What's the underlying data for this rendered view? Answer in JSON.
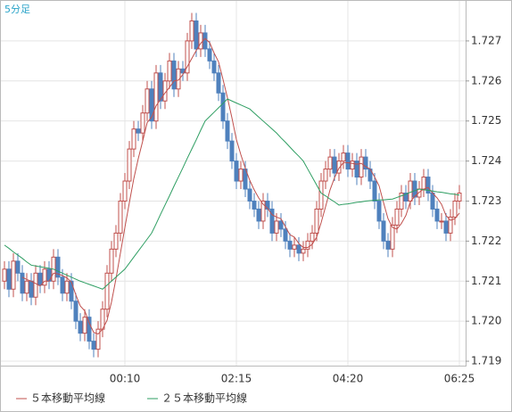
{
  "chart_data": {
    "type": "candlestick",
    "period_label": "5分足",
    "categories": [
      null,
      null,
      null,
      null,
      null,
      null,
      null,
      null,
      null,
      null,
      null,
      null,
      null,
      null,
      null,
      null,
      null,
      null,
      null,
      null,
      null,
      null,
      null,
      null,
      null,
      null,
      null,
      "00:10",
      null,
      null,
      null,
      null,
      null,
      null,
      null,
      null,
      null,
      null,
      null,
      null,
      null,
      null,
      null,
      null,
      null,
      null,
      null,
      null,
      null,
      null,
      null,
      null,
      "02:15",
      null,
      null,
      null,
      null,
      null,
      null,
      null,
      null,
      null,
      null,
      null,
      null,
      null,
      null,
      null,
      null,
      null,
      null,
      null,
      null,
      null,
      null,
      null,
      null,
      "04:20",
      null,
      null,
      null,
      null,
      null,
      null,
      null,
      null,
      null,
      null,
      null,
      null,
      null,
      null,
      null,
      null,
      null,
      null,
      null,
      null,
      null,
      null,
      null,
      null,
      "06:25"
    ],
    "open": [
      1.721,
      1.7213,
      1.7208,
      1.7215,
      1.7212,
      1.7207,
      1.721,
      1.7206,
      1.7212,
      1.7209,
      1.7213,
      1.721,
      1.7216,
      1.7211,
      1.7207,
      1.721,
      1.7205,
      1.72,
      1.7197,
      1.7201,
      1.7195,
      1.7193,
      1.7198,
      1.7203,
      1.7212,
      1.7218,
      1.7222,
      1.723,
      1.7235,
      1.7243,
      1.7248,
      1.7247,
      1.7252,
      1.7258,
      1.725,
      1.7262,
      1.7255,
      1.726,
      1.7265,
      1.7258,
      1.7263,
      1.7262,
      1.727,
      1.7275,
      1.7268,
      1.7272,
      1.7268,
      1.7265,
      1.7262,
      1.7257,
      1.725,
      1.7245,
      1.724,
      1.7235,
      1.7238,
      1.7233,
      1.723,
      1.7228,
      1.7225,
      1.723,
      1.7228,
      1.7222,
      1.7225,
      1.7223,
      1.722,
      1.7218,
      1.7219,
      1.7217,
      1.7218,
      1.722,
      1.7222,
      1.7228,
      1.7235,
      1.7238,
      1.7241,
      1.7237,
      1.724,
      1.7242,
      1.7238,
      1.724,
      1.7236,
      1.7241,
      1.7238,
      1.7235,
      1.723,
      1.7225,
      1.722,
      1.7218,
      1.7224,
      1.7228,
      1.7232,
      1.723,
      1.7235,
      1.7231,
      1.7233,
      1.7236,
      1.7232,
      1.7228,
      1.7225,
      1.7225,
      1.7222,
      1.7226,
      1.723
    ],
    "high": [
      1.7215,
      1.7215,
      1.7217,
      1.7217,
      1.7214,
      1.7212,
      1.7212,
      1.7214,
      1.7214,
      1.7215,
      1.7215,
      1.7218,
      1.7218,
      1.7213,
      1.7212,
      1.7212,
      1.7207,
      1.7202,
      1.7203,
      1.7203,
      1.7197,
      1.72,
      1.7205,
      1.7214,
      1.722,
      1.7224,
      1.7232,
      1.7237,
      1.7245,
      1.725,
      1.725,
      1.7254,
      1.726,
      1.726,
      1.7264,
      1.7264,
      1.7262,
      1.7267,
      1.7267,
      1.7265,
      1.7265,
      1.7272,
      1.7277,
      1.7277,
      1.7274,
      1.7274,
      1.727,
      1.7267,
      1.7264,
      1.7259,
      1.7252,
      1.7247,
      1.7242,
      1.724,
      1.724,
      1.7235,
      1.7232,
      1.723,
      1.7232,
      1.7232,
      1.723,
      1.7227,
      1.7227,
      1.7225,
      1.7222,
      1.7221,
      1.7221,
      1.722,
      1.7222,
      1.7224,
      1.723,
      1.7237,
      1.724,
      1.7243,
      1.7243,
      1.7242,
      1.7244,
      1.7244,
      1.7242,
      1.7242,
      1.7243,
      1.7243,
      1.724,
      1.7237,
      1.7232,
      1.7227,
      1.7222,
      1.7226,
      1.723,
      1.7234,
      1.7234,
      1.7237,
      1.7237,
      1.7235,
      1.7238,
      1.7238,
      1.7234,
      1.723,
      1.7227,
      1.7227,
      1.7228,
      1.7232,
      1.7234
    ],
    "low": [
      1.7208,
      1.7206,
      1.7206,
      1.721,
      1.7205,
      1.7205,
      1.7204,
      1.7204,
      1.7207,
      1.7207,
      1.7208,
      1.7208,
      1.7209,
      1.7205,
      1.7205,
      1.7203,
      1.7198,
      1.7195,
      1.7195,
      1.7193,
      1.7191,
      1.7191,
      1.7196,
      1.7201,
      1.721,
      1.7216,
      1.722,
      1.7228,
      1.7233,
      1.7241,
      1.7245,
      1.7245,
      1.725,
      1.7248,
      1.7248,
      1.7253,
      1.7253,
      1.7258,
      1.7256,
      1.7256,
      1.726,
      1.726,
      1.7268,
      1.7266,
      1.7266,
      1.7266,
      1.7263,
      1.726,
      1.7255,
      1.7248,
      1.7243,
      1.7238,
      1.7233,
      1.7233,
      1.7231,
      1.7228,
      1.7226,
      1.7223,
      1.7223,
      1.7226,
      1.722,
      1.722,
      1.7221,
      1.7218,
      1.7216,
      1.7216,
      1.7215,
      1.7215,
      1.7216,
      1.7218,
      1.722,
      1.7226,
      1.7233,
      1.7236,
      1.7235,
      1.7235,
      1.7238,
      1.7236,
      1.7236,
      1.7234,
      1.7234,
      1.7236,
      1.7233,
      1.7228,
      1.7223,
      1.7218,
      1.7216,
      1.7216,
      1.7222,
      1.7226,
      1.7228,
      1.7228,
      1.7229,
      1.7229,
      1.7231,
      1.723,
      1.7226,
      1.7223,
      1.7223,
      1.722,
      1.722,
      1.7224,
      1.7228
    ],
    "close": [
      1.7213,
      1.7208,
      1.7215,
      1.7212,
      1.7207,
      1.721,
      1.7206,
      1.7212,
      1.7209,
      1.7213,
      1.721,
      1.7216,
      1.7211,
      1.7207,
      1.721,
      1.7205,
      1.72,
      1.7197,
      1.7201,
      1.7195,
      1.7193,
      1.7198,
      1.7203,
      1.7212,
      1.7218,
      1.7222,
      1.723,
      1.7235,
      1.7243,
      1.7248,
      1.7247,
      1.7252,
      1.7258,
      1.725,
      1.7262,
      1.7255,
      1.726,
      1.7265,
      1.7258,
      1.7263,
      1.7262,
      1.727,
      1.7275,
      1.7268,
      1.7272,
      1.7268,
      1.7265,
      1.7262,
      1.7257,
      1.725,
      1.7245,
      1.724,
      1.7235,
      1.7238,
      1.7233,
      1.723,
      1.7228,
      1.7225,
      1.723,
      1.7228,
      1.7222,
      1.7225,
      1.7223,
      1.722,
      1.7218,
      1.7219,
      1.7217,
      1.7218,
      1.722,
      1.7222,
      1.7228,
      1.7235,
      1.7238,
      1.7241,
      1.7237,
      1.724,
      1.7242,
      1.7238,
      1.724,
      1.7236,
      1.7241,
      1.7238,
      1.7235,
      1.723,
      1.7225,
      1.722,
      1.7218,
      1.7224,
      1.7228,
      1.7232,
      1.723,
      1.7235,
      1.7231,
      1.7233,
      1.7236,
      1.7232,
      1.7228,
      1.7225,
      1.7225,
      1.7222,
      1.7226,
      1.723,
      1.7232
    ],
    "up_color": "#c0504d",
    "down_color": "#4f81bd",
    "series": [
      {
        "name": "５本移動平均線",
        "color": "#c0504d",
        "values": [
          null,
          null,
          null,
          null,
          1.7211,
          1.72104,
          1.721,
          1.72094,
          1.72088,
          1.721,
          1.721,
          1.7212,
          1.72118,
          1.72114,
          1.72108,
          1.72098,
          1.72066,
          1.72038,
          1.72026,
          1.71996,
          1.71972,
          1.71968,
          1.7198,
          1.72002,
          1.72048,
          1.72106,
          1.7217,
          1.72234,
          1.72296,
          1.72356,
          1.72406,
          1.7245,
          1.72496,
          1.7251,
          1.72538,
          1.72554,
          1.7257,
          1.72584,
          1.726,
          1.72602,
          1.72616,
          1.72636,
          1.72656,
          1.72676,
          1.72694,
          1.72706,
          1.72696,
          1.7267,
          1.72648,
          1.72604,
          1.72558,
          1.72508,
          1.72454,
          1.72416,
          1.72382,
          1.72352,
          1.72328,
          1.72308,
          1.72292,
          1.72282,
          1.72266,
          1.7226,
          1.72256,
          1.72236,
          1.72216,
          1.7221,
          1.72194,
          1.72184,
          1.72184,
          1.72192,
          1.7221,
          1.72246,
          1.72286,
          1.72328,
          1.72358,
          1.72382,
          1.72396,
          1.72396,
          1.72394,
          1.72392,
          1.72394,
          1.72386,
          1.7238,
          1.7236,
          1.72338,
          1.72296,
          1.72256,
          1.72234,
          1.7223,
          1.72244,
          1.72264,
          1.72298,
          1.72312,
          1.72322,
          1.7233,
          1.72334,
          1.7232,
          1.72308,
          1.72292,
          1.72264,
          1.72252,
          1.72256,
          1.7227
        ]
      },
      {
        "name": "２５本移動平均線",
        "color": "#2e9e62",
        "values": [
          1.7219,
          1.72182,
          1.72173,
          1.72165,
          1.72157,
          1.72148,
          1.7214,
          1.72138,
          1.72136,
          1.72134,
          1.72132,
          1.7213,
          1.72125,
          1.7212,
          1.72115,
          1.7211,
          1.72105,
          1.721,
          1.72096,
          1.72092,
          1.72088,
          1.72084,
          1.7208,
          1.7209,
          1.721,
          1.7211,
          1.7212,
          1.7213,
          1.72145,
          1.7216,
          1.72175,
          1.7219,
          1.72205,
          1.7222,
          1.72243,
          1.72267,
          1.7229,
          1.72313,
          1.72337,
          1.7236,
          1.72383,
          1.72407,
          1.7243,
          1.72453,
          1.72477,
          1.725,
          1.72511,
          1.72522,
          1.72533,
          1.72544,
          1.72555,
          1.7255,
          1.72545,
          1.7254,
          1.72535,
          1.7253,
          1.7252,
          1.7251,
          1.725,
          1.7249,
          1.7248,
          1.7247,
          1.72458,
          1.72447,
          1.72435,
          1.72423,
          1.72412,
          1.724,
          1.7238,
          1.7236,
          1.7234,
          1.7232,
          1.72313,
          1.72305,
          1.72298,
          1.7229,
          1.72292,
          1.72293,
          1.72295,
          1.72297,
          1.72298,
          1.723,
          1.72301,
          1.72302,
          1.72303,
          1.72303,
          1.72304,
          1.72305,
          1.72309,
          1.72313,
          1.72317,
          1.72322,
          1.72326,
          1.7233,
          1.72328,
          1.72327,
          1.72325,
          1.72323,
          1.72322,
          1.7232,
          1.72318,
          1.72317,
          1.72315
        ]
      }
    ],
    "ylim": [
      1.71889,
      1.728
    ],
    "yticks": [
      1.719,
      {
        "value": 1.72,
        "label": "1.720"
      },
      1.721,
      1.722,
      1.723,
      1.724,
      1.725,
      1.726,
      1.727
    ],
    "grid": true
  }
}
